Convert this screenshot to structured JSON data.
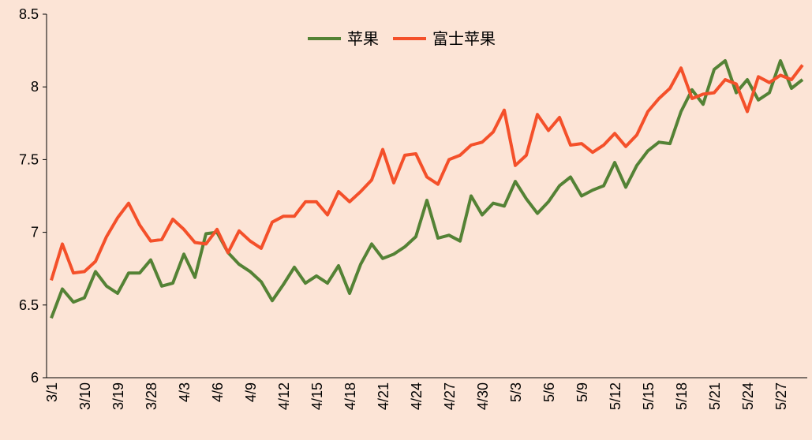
{
  "chart_data": {
    "type": "line",
    "categories": [
      "3/1",
      null,
      null,
      "3/10",
      null,
      null,
      "3/19",
      null,
      null,
      "3/28",
      null,
      null,
      "4/3",
      null,
      null,
      "4/6",
      null,
      null,
      "4/9",
      null,
      null,
      "4/12",
      null,
      null,
      "4/15",
      null,
      null,
      "4/18",
      null,
      null,
      "4/21",
      null,
      null,
      "4/24",
      null,
      null,
      "4/27",
      null,
      null,
      "4/30",
      null,
      null,
      "5/3",
      null,
      null,
      "5/6",
      null,
      null,
      "5/9",
      null,
      null,
      "5/12",
      null,
      null,
      "5/15",
      null,
      null,
      "5/18",
      null,
      null,
      "5/21",
      null,
      null,
      "5/24",
      null,
      null,
      "5/27",
      null,
      null
    ],
    "series": [
      {
        "name": "苹果",
        "color": "#548235",
        "values": [
          6.41,
          6.61,
          6.52,
          6.55,
          6.73,
          6.63,
          6.58,
          6.72,
          6.72,
          6.81,
          6.63,
          6.65,
          6.85,
          6.69,
          6.99,
          7.0,
          6.86,
          6.78,
          6.73,
          6.66,
          6.53,
          6.64,
          6.76,
          6.65,
          6.7,
          6.65,
          6.77,
          6.58,
          6.78,
          6.92,
          6.82,
          6.85,
          6.9,
          6.97,
          7.22,
          6.96,
          6.98,
          6.94,
          7.25,
          7.12,
          7.2,
          7.18,
          7.35,
          7.23,
          7.13,
          7.21,
          7.32,
          7.38,
          7.25,
          7.29,
          7.32,
          7.48,
          7.31,
          7.46,
          7.56,
          7.62,
          7.61,
          7.83,
          7.98,
          7.88,
          8.12,
          8.18,
          7.96,
          8.05,
          7.91,
          7.96,
          8.18,
          7.99,
          8.05
        ]
      },
      {
        "name": "富士苹果",
        "color": "#f4502a",
        "values": [
          6.67,
          6.92,
          6.72,
          6.73,
          6.8,
          6.97,
          7.1,
          7.2,
          7.05,
          6.94,
          6.95,
          7.09,
          7.02,
          6.93,
          6.92,
          7.02,
          6.86,
          7.01,
          6.94,
          6.89,
          7.07,
          7.11,
          7.11,
          7.21,
          7.21,
          7.12,
          7.28,
          7.21,
          7.28,
          7.36,
          7.57,
          7.34,
          7.53,
          7.54,
          7.38,
          7.33,
          7.5,
          7.53,
          7.6,
          7.62,
          7.69,
          7.84,
          7.46,
          7.53,
          7.81,
          7.7,
          7.79,
          7.6,
          7.61,
          7.55,
          7.6,
          7.68,
          7.59,
          7.67,
          7.83,
          7.92,
          7.99,
          8.13,
          7.92,
          7.95,
          7.96,
          8.05,
          8.02,
          7.83,
          8.07,
          8.03,
          8.08,
          8.05,
          8.15
        ]
      }
    ],
    "ylim": [
      6,
      8.5
    ],
    "yticks": [
      6,
      6.5,
      7,
      7.5,
      8,
      8.5
    ],
    "legend": "top"
  }
}
